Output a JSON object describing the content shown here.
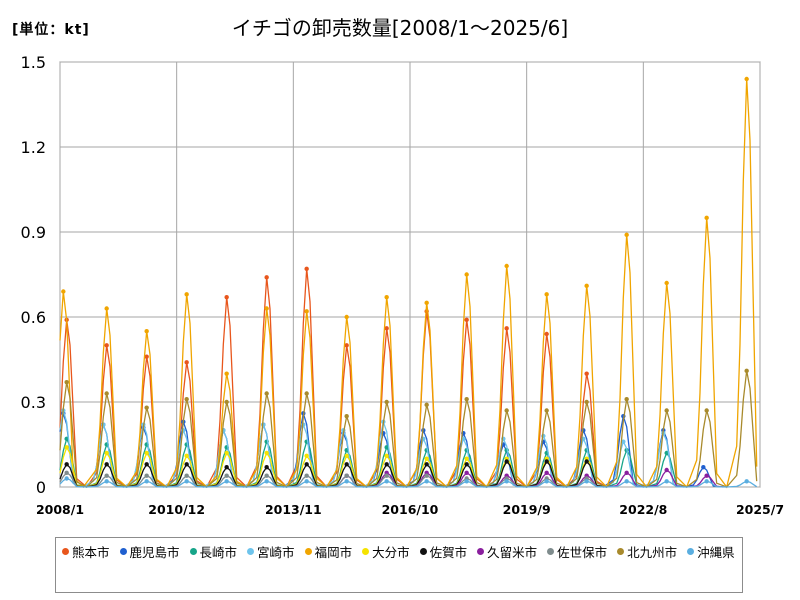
{
  "unit_label": "[単位：kt]",
  "title": "イチゴの卸売数量[2008/1～2025/6]",
  "chart_data": {
    "type": "line",
    "title": "イチゴの卸売数量[2008/1～2025/6]",
    "ylabel": "[単位：kt]",
    "xlabel": "",
    "ylim": [
      0,
      1.5
    ],
    "yticks": [
      "0",
      "0.3",
      "0.6",
      "0.9",
      "1.2",
      "1.5"
    ],
    "xlim": [
      "2008/1",
      "2025/7"
    ],
    "xticks": [
      "2008/1",
      "2010/12",
      "2013/11",
      "2016/10",
      "2019/9",
      "2022/8",
      "2025/7"
    ],
    "grid": true,
    "legend_position": "bottom",
    "season_peaks_note": "seasonal: each year peaks roughly Dec–Apr, near zero Jun–Oct",
    "series": [
      {
        "name": "熊本市",
        "color": "#e8561c",
        "peaks": [
          [
            "2008/3",
            0.59
          ],
          [
            "2009/3",
            0.5
          ],
          [
            "2010/3",
            0.46
          ],
          [
            "2011/3",
            0.44
          ],
          [
            "2012/3",
            0.67
          ],
          [
            "2013/3",
            0.74
          ],
          [
            "2014/3",
            0.77
          ],
          [
            "2015/3",
            0.5
          ],
          [
            "2016/3",
            0.56
          ],
          [
            "2017/3",
            0.62
          ],
          [
            "2018/3",
            0.59
          ],
          [
            "2019/3",
            0.56
          ],
          [
            "2020/3",
            0.54
          ],
          [
            "2021/3",
            0.4
          ]
        ]
      },
      {
        "name": "鹿児島市",
        "color": "#1f5fcf",
        "peaks": [
          [
            "2008/2",
            0.26
          ],
          [
            "2009/2",
            0.22
          ],
          [
            "2010/2",
            0.21
          ],
          [
            "2011/2",
            0.23
          ],
          [
            "2012/2",
            0.2
          ],
          [
            "2013/2",
            0.22
          ],
          [
            "2014/2",
            0.26
          ],
          [
            "2015/2",
            0.19
          ],
          [
            "2016/2",
            0.19
          ],
          [
            "2017/2",
            0.2
          ],
          [
            "2018/2",
            0.19
          ],
          [
            "2019/2",
            0.15
          ],
          [
            "2020/2",
            0.16
          ],
          [
            "2021/2",
            0.2
          ],
          [
            "2022/2",
            0.25
          ],
          [
            "2023/2",
            0.2
          ],
          [
            "2024/2",
            0.07
          ]
        ]
      },
      {
        "name": "長崎市",
        "color": "#17a589",
        "peaks": [
          [
            "2008/3",
            0.17
          ],
          [
            "2009/3",
            0.15
          ],
          [
            "2010/3",
            0.15
          ],
          [
            "2011/3",
            0.15
          ],
          [
            "2012/3",
            0.14
          ],
          [
            "2013/3",
            0.16
          ],
          [
            "2014/3",
            0.16
          ],
          [
            "2015/3",
            0.13
          ],
          [
            "2016/3",
            0.14
          ],
          [
            "2017/3",
            0.13
          ],
          [
            "2018/3",
            0.13
          ],
          [
            "2019/3",
            0.13
          ],
          [
            "2020/3",
            0.12
          ],
          [
            "2021/3",
            0.13
          ],
          [
            "2022/3",
            0.13
          ],
          [
            "2023/3",
            0.12
          ]
        ]
      },
      {
        "name": "宮崎市",
        "color": "#6ec4ec",
        "peaks": [
          [
            "2008/2",
            0.27
          ],
          [
            "2009/2",
            0.22
          ],
          [
            "2010/2",
            0.22
          ],
          [
            "2011/2",
            0.2
          ],
          [
            "2012/2",
            0.2
          ],
          [
            "2013/2",
            0.22
          ],
          [
            "2014/2",
            0.22
          ],
          [
            "2015/2",
            0.2
          ],
          [
            "2016/2",
            0.23
          ],
          [
            "2017/2",
            0.17
          ],
          [
            "2018/2",
            0.17
          ],
          [
            "2019/2",
            0.17
          ],
          [
            "2020/2",
            0.18
          ],
          [
            "2021/2",
            0.17
          ],
          [
            "2022/2",
            0.16
          ],
          [
            "2023/2",
            0.19
          ]
        ]
      },
      {
        "name": "福岡市",
        "color": "#f0a500",
        "peaks": [
          [
            "2008/2",
            0.69
          ],
          [
            "2009/3",
            0.63
          ],
          [
            "2010/3",
            0.55
          ],
          [
            "2011/3",
            0.68
          ],
          [
            "2012/3",
            0.4
          ],
          [
            "2013/3",
            0.63
          ],
          [
            "2014/3",
            0.62
          ],
          [
            "2015/3",
            0.6
          ],
          [
            "2016/3",
            0.67
          ],
          [
            "2017/3",
            0.65
          ],
          [
            "2018/3",
            0.75
          ],
          [
            "2019/3",
            0.78
          ],
          [
            "2020/3",
            0.68
          ],
          [
            "2021/3",
            0.71
          ],
          [
            "2022/3",
            0.89
          ],
          [
            "2023/3",
            0.72
          ],
          [
            "2024/3",
            0.95
          ],
          [
            "2025/3",
            1.44
          ]
        ]
      },
      {
        "name": "大分市",
        "color": "#f5e300",
        "peaks": [
          [
            "2008/3",
            0.14
          ],
          [
            "2009/3",
            0.12
          ],
          [
            "2010/3",
            0.12
          ],
          [
            "2011/3",
            0.11
          ],
          [
            "2012/3",
            0.12
          ],
          [
            "2013/3",
            0.12
          ],
          [
            "2014/3",
            0.11
          ],
          [
            "2015/3",
            0.11
          ],
          [
            "2016/3",
            0.11
          ],
          [
            "2017/3",
            0.1
          ],
          [
            "2018/3",
            0.1
          ],
          [
            "2019/3",
            0.1
          ],
          [
            "2020/3",
            0.1
          ],
          [
            "2021/3",
            0.1
          ]
        ]
      },
      {
        "name": "佐賀市",
        "color": "#111111",
        "peaks": [
          [
            "2008/3",
            0.08
          ],
          [
            "2009/3",
            0.08
          ],
          [
            "2010/3",
            0.08
          ],
          [
            "2011/3",
            0.08
          ],
          [
            "2012/3",
            0.07
          ],
          [
            "2013/3",
            0.07
          ],
          [
            "2014/3",
            0.08
          ],
          [
            "2015/3",
            0.08
          ],
          [
            "2016/3",
            0.08
          ],
          [
            "2017/3",
            0.08
          ],
          [
            "2018/3",
            0.08
          ],
          [
            "2019/3",
            0.09
          ],
          [
            "2020/3",
            0.09
          ],
          [
            "2021/3",
            0.09
          ]
        ]
      },
      {
        "name": "久留米市",
        "color": "#8a1f9e",
        "peaks": [
          [
            "2015/3",
            0.04
          ],
          [
            "2016/3",
            0.05
          ],
          [
            "2017/3",
            0.05
          ],
          [
            "2018/3",
            0.05
          ],
          [
            "2019/3",
            0.04
          ],
          [
            "2020/3",
            0.05
          ],
          [
            "2021/3",
            0.04
          ],
          [
            "2022/3",
            0.05
          ],
          [
            "2023/3",
            0.06
          ],
          [
            "2024/3",
            0.04
          ]
        ]
      },
      {
        "name": "佐世保市",
        "color": "#7f8c8d",
        "peaks": [
          [
            "2008/3",
            0.05
          ],
          [
            "2009/3",
            0.04
          ],
          [
            "2010/3",
            0.04
          ],
          [
            "2011/3",
            0.04
          ],
          [
            "2012/3",
            0.04
          ],
          [
            "2013/3",
            0.04
          ],
          [
            "2014/3",
            0.04
          ],
          [
            "2015/3",
            0.04
          ],
          [
            "2016/3",
            0.04
          ],
          [
            "2017/3",
            0.04
          ],
          [
            "2018/3",
            0.03
          ],
          [
            "2019/3",
            0.03
          ],
          [
            "2020/3",
            0.03
          ],
          [
            "2021/3",
            0.03
          ]
        ]
      },
      {
        "name": "北九州市",
        "color": "#a88a2c",
        "peaks": [
          [
            "2008/3",
            0.37
          ],
          [
            "2009/3",
            0.33
          ],
          [
            "2010/3",
            0.28
          ],
          [
            "2011/3",
            0.31
          ],
          [
            "2012/3",
            0.3
          ],
          [
            "2013/3",
            0.33
          ],
          [
            "2014/3",
            0.33
          ],
          [
            "2015/3",
            0.25
          ],
          [
            "2016/3",
            0.3
          ],
          [
            "2017/3",
            0.29
          ],
          [
            "2018/3",
            0.31
          ],
          [
            "2019/3",
            0.27
          ],
          [
            "2020/3",
            0.27
          ],
          [
            "2021/3",
            0.3
          ],
          [
            "2022/3",
            0.31
          ],
          [
            "2023/3",
            0.27
          ],
          [
            "2024/3",
            0.27
          ],
          [
            "2025/3",
            0.41
          ]
        ]
      },
      {
        "name": "沖縄県",
        "color": "#5aaee0",
        "peaks": [
          [
            "2008/3",
            0.03
          ],
          [
            "2009/3",
            0.02
          ],
          [
            "2010/3",
            0.02
          ],
          [
            "2011/3",
            0.02
          ],
          [
            "2012/3",
            0.02
          ],
          [
            "2013/3",
            0.02
          ],
          [
            "2014/3",
            0.02
          ],
          [
            "2015/3",
            0.02
          ],
          [
            "2016/3",
            0.02
          ],
          [
            "2017/3",
            0.02
          ],
          [
            "2018/3",
            0.02
          ],
          [
            "2019/3",
            0.02
          ],
          [
            "2020/3",
            0.02
          ],
          [
            "2021/3",
            0.02
          ],
          [
            "2022/3",
            0.02
          ],
          [
            "2023/3",
            0.02
          ],
          [
            "2024/3",
            0.02
          ],
          [
            "2025/3",
            0.02
          ]
        ]
      }
    ]
  }
}
